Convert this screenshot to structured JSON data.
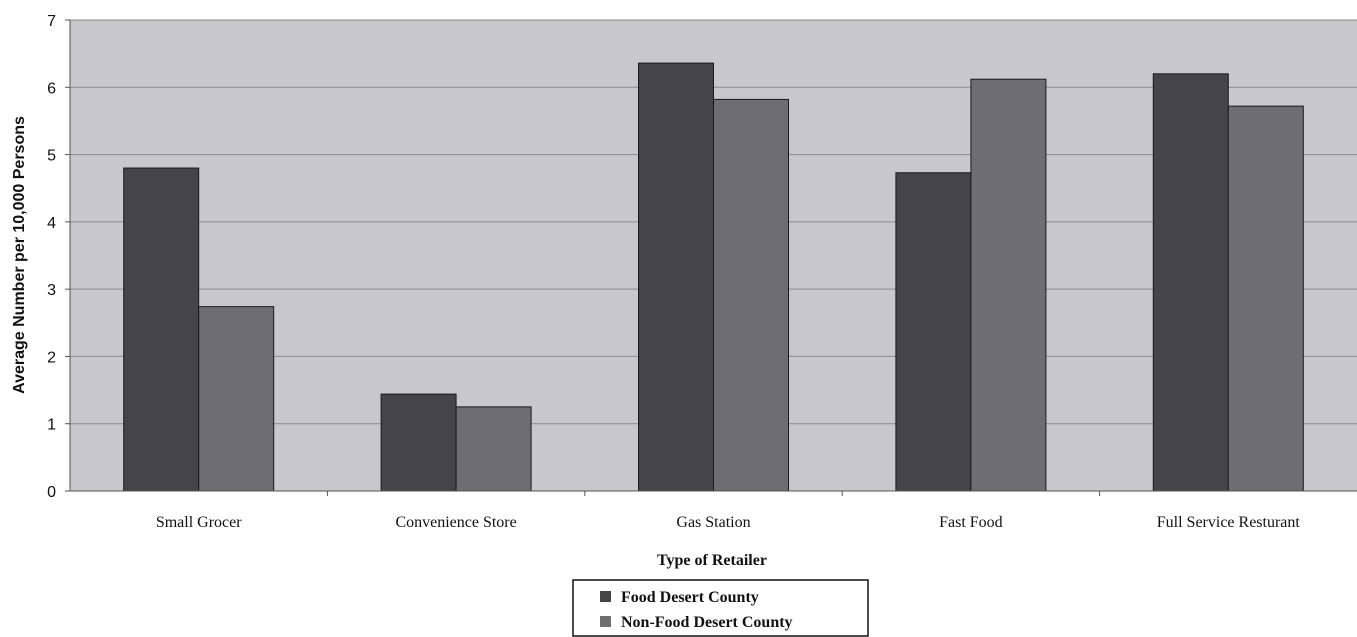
{
  "chart_data": {
    "type": "bar",
    "title": "",
    "xlabel": "Type of Retailer",
    "ylabel": "Average Number per 10,000 Persons",
    "categories": [
      "Small Grocer",
      "Convenience Store",
      "Gas Station",
      "Fast Food",
      "Full Service Resturant"
    ],
    "series": [
      {
        "name": "Food Desert County",
        "values": [
          4.8,
          1.44,
          6.36,
          4.73,
          6.2
        ],
        "color": "#454547"
      },
      {
        "name": "Non-Food Desert County",
        "values": [
          2.74,
          1.25,
          5.82,
          6.12,
          5.72
        ],
        "color": "#6e6e70"
      }
    ],
    "ylim": [
      0,
      7
    ],
    "yticks": [
      "0",
      "1",
      "2",
      "3",
      "4",
      "5",
      "6",
      "7"
    ],
    "grid": true,
    "plot_background": "#c8c8ca",
    "legend_position": "bottom-center"
  }
}
